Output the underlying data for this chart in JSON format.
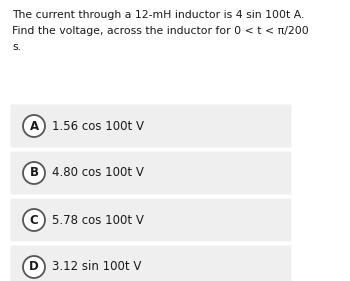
{
  "question_line1": "The current through a 12-mH inductor is 4 sin 100t A.",
  "question_line2": "Find the voltage, across the inductor for 0 < t < π/200",
  "question_line3": "s.",
  "options": [
    {
      "label": "A",
      "text": "1.56 cos 100t V"
    },
    {
      "label": "B",
      "text": "4.80 cos 100t V"
    },
    {
      "label": "C",
      "text": "5.78 cos 100t V"
    },
    {
      "label": "D",
      "text": "3.12 sin 100t V"
    }
  ],
  "bg_color": "#ffffff",
  "option_bg_color": "#efefef",
  "text_color": "#1a1a1a",
  "circle_edge_color": "#555555",
  "question_fontsize": 7.8,
  "option_fontsize": 8.5,
  "label_fontsize": 8.5
}
